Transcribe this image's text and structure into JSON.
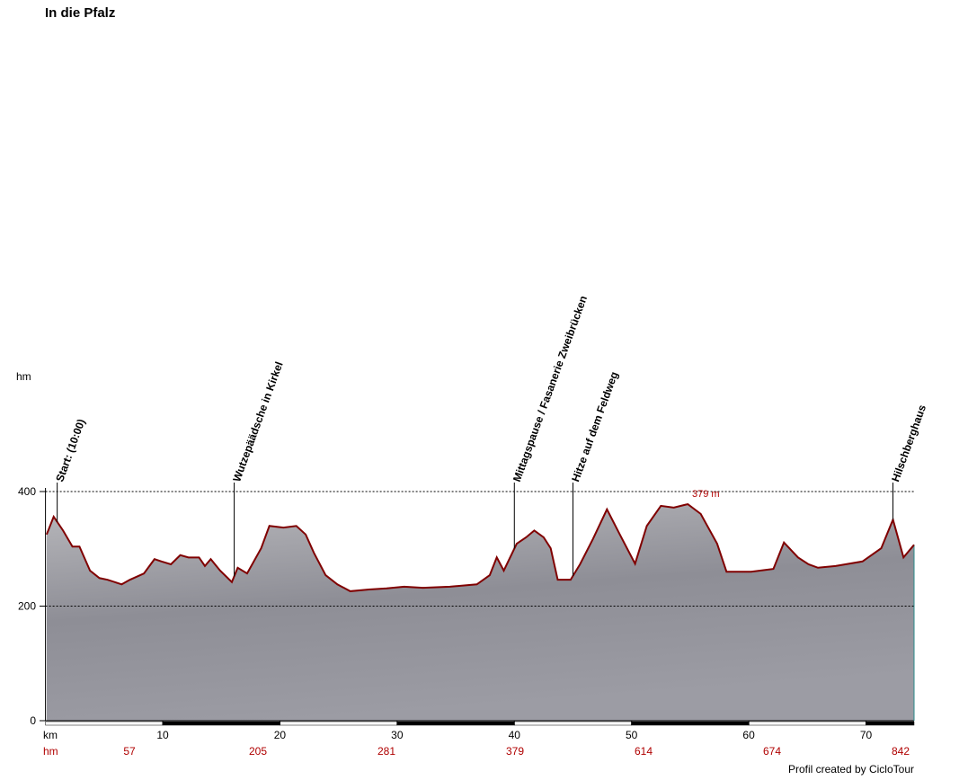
{
  "chart_data": {
    "type": "line",
    "title": "In die Pfalz",
    "y_label": "hm",
    "x_label": "km",
    "x": [
      0.1,
      0.7,
      1.5,
      2.3,
      2.9,
      3.8,
      4.6,
      5.3,
      6.5,
      7.2,
      8.4,
      9.3,
      9.9,
      10.7,
      11.5,
      12.2,
      13.1,
      13.6,
      14.1,
      14.9,
      15.9,
      16.4,
      17.2,
      18.4,
      19.1,
      20.3,
      21.4,
      22.2,
      22.9,
      23.9,
      24.9,
      26.0,
      27.6,
      29.1,
      30.6,
      32.2,
      34.5,
      36.8,
      37.9,
      38.5,
      39.1,
      40.2,
      41.0,
      41.7,
      42.5,
      43.1,
      43.7,
      44.8,
      45.6,
      46.7,
      47.9,
      49.0,
      50.3,
      51.3,
      52.5,
      53.6,
      54.8,
      55.9,
      57.3,
      58.1,
      60.2,
      62.1,
      63.0,
      64.2,
      65.1,
      65.9,
      67.4,
      69.7,
      71.3,
      72.3,
      73.2,
      74.1
    ],
    "series": [
      {
        "color": "#800000",
        "values": [
          325,
          356,
          332,
          304,
          304,
          262,
          249,
          246,
          238,
          246,
          257,
          282,
          278,
          273,
          289,
          285,
          285,
          270,
          282,
          262,
          242,
          267,
          257,
          301,
          340,
          337,
          340,
          325,
          293,
          254,
          238,
          226,
          229,
          231,
          234,
          232,
          234,
          238,
          254,
          285,
          262,
          309,
          320,
          332,
          320,
          301,
          246,
          246,
          273,
          317,
          369,
          325,
          274,
          340,
          375,
          372,
          378,
          361,
          309,
          260,
          260,
          265,
          311,
          285,
          273,
          267,
          270,
          278,
          301,
          351,
          285,
          307
        ]
      }
    ],
    "xlim": [
      0,
      74.1
    ],
    "ylim": [
      0,
      400
    ],
    "xticks": [
      10,
      20,
      30,
      40,
      50,
      60,
      70
    ],
    "yticks": [
      0,
      200,
      400
    ],
    "grid": true,
    "waypoints": [
      {
        "km": 1.0,
        "label": "Start: (10:00)"
      },
      {
        "km": 16.1,
        "label": "Wutzepäädsche in Kirkel"
      },
      {
        "km": 40.0,
        "label": "Mittagspause / Fasanerie Zweibrücken"
      },
      {
        "km": 45.0,
        "label": "Hitze auf dem Feldweg"
      },
      {
        "km": 72.3,
        "label": "Hilschberghaus"
      }
    ],
    "max_annotation": "379 m",
    "climb_label": "hm",
    "climb_values": [
      57,
      205,
      281,
      379,
      614,
      674,
      842
    ],
    "footer": "Profil created by CicloTour"
  }
}
